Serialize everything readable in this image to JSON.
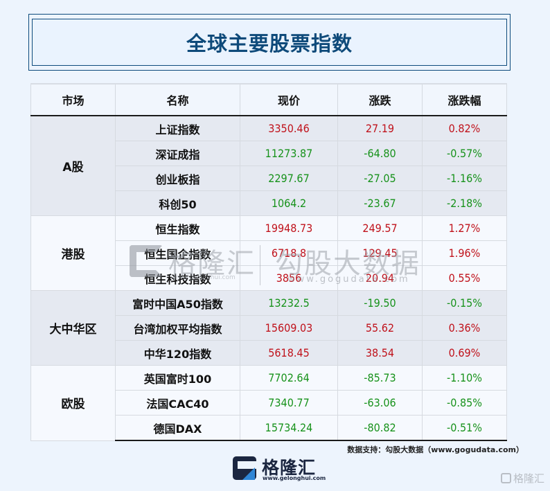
{
  "title": "全球主要股票指数",
  "table": {
    "headers": [
      "市场",
      "名称",
      "现价",
      "涨跌",
      "涨跌幅"
    ],
    "groups": [
      {
        "market": "A股",
        "rows": [
          {
            "name": "上证指数",
            "price": "3350.46",
            "change": "27.19",
            "pct": "0.82%",
            "dir": "up"
          },
          {
            "name": "深证成指",
            "price": "11273.87",
            "change": "-64.80",
            "pct": "-0.57%",
            "dir": "down"
          },
          {
            "name": "创业板指",
            "price": "2297.67",
            "change": "-27.05",
            "pct": "-1.16%",
            "dir": "down"
          },
          {
            "name": "科创50",
            "price": "1064.2",
            "change": "-23.67",
            "pct": "-2.18%",
            "dir": "down"
          }
        ]
      },
      {
        "market": "港股",
        "rows": [
          {
            "name": "恒生指数",
            "price": "19948.73",
            "change": "249.57",
            "pct": "1.27%",
            "dir": "up"
          },
          {
            "name": "恒生国企指数",
            "price": "6718.8",
            "change": "129.45",
            "pct": "1.96%",
            "dir": "up"
          },
          {
            "name": "恒生科技指数",
            "price": "3856",
            "change": "20.94",
            "pct": "0.55%",
            "dir": "up"
          }
        ]
      },
      {
        "market": "大中华区",
        "rows": [
          {
            "name": "富时中国A50指数",
            "price": "13232.5",
            "change": "-19.50",
            "pct": "-0.15%",
            "dir": "down"
          },
          {
            "name": "台湾加权平均指数",
            "price": "15609.03",
            "change": "55.62",
            "pct": "0.36%",
            "dir": "up"
          },
          {
            "name": "中华120指数",
            "price": "5618.45",
            "change": "38.54",
            "pct": "0.69%",
            "dir": "up"
          }
        ]
      },
      {
        "market": "欧股",
        "rows": [
          {
            "name": "英国富时100",
            "price": "7702.64",
            "change": "-85.73",
            "pct": "-1.10%",
            "dir": "down"
          },
          {
            "name": "法国CAC40",
            "price": "7340.77",
            "change": "-63.06",
            "pct": "-0.85%",
            "dir": "down"
          },
          {
            "name": "德国DAX",
            "price": "15734.24",
            "change": "-80.82",
            "pct": "-0.51%",
            "dir": "down"
          }
        ]
      }
    ]
  },
  "colors": {
    "up": "#c0121b",
    "down": "#17921b",
    "title": "#0e4a7a"
  },
  "watermark": {
    "brand": "格隆汇",
    "brand_url": "www.gelonghui.com",
    "data_brand": "勾股大数据",
    "data_url": "www.gogudata.com"
  },
  "source": "数据支持：勾股大数据（www.gogudata.com）",
  "logo": {
    "text": "格隆汇",
    "url": "www.gelonghui.com"
  },
  "corner_logo": "格隆汇"
}
